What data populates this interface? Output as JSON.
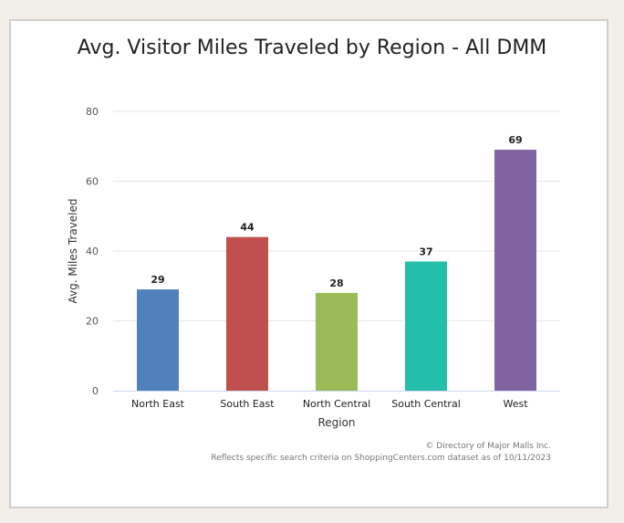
{
  "chart_data": {
    "type": "bar",
    "title": "Avg. Visitor Miles Traveled by Region - All DMM",
    "xlabel": "Region",
    "ylabel": "Avg. Miles Traveled",
    "categories": [
      "North East",
      "South East",
      "North Central",
      "South Central",
      "West"
    ],
    "values": [
      29,
      44,
      28,
      37,
      69
    ],
    "ylim": [
      0,
      80
    ],
    "yticks": [
      0,
      20,
      40,
      60,
      80
    ],
    "grid": true,
    "colors": [
      "#4f81bd",
      "#c0504d",
      "#9bbb59",
      "#23bfaa",
      "#8064a2"
    ]
  },
  "credits": {
    "line1": "© Directory of Major Malls Inc.",
    "line2": "Reflects specific search criteria on ShoppingCenters.com dataset as of 10/11/2023"
  }
}
